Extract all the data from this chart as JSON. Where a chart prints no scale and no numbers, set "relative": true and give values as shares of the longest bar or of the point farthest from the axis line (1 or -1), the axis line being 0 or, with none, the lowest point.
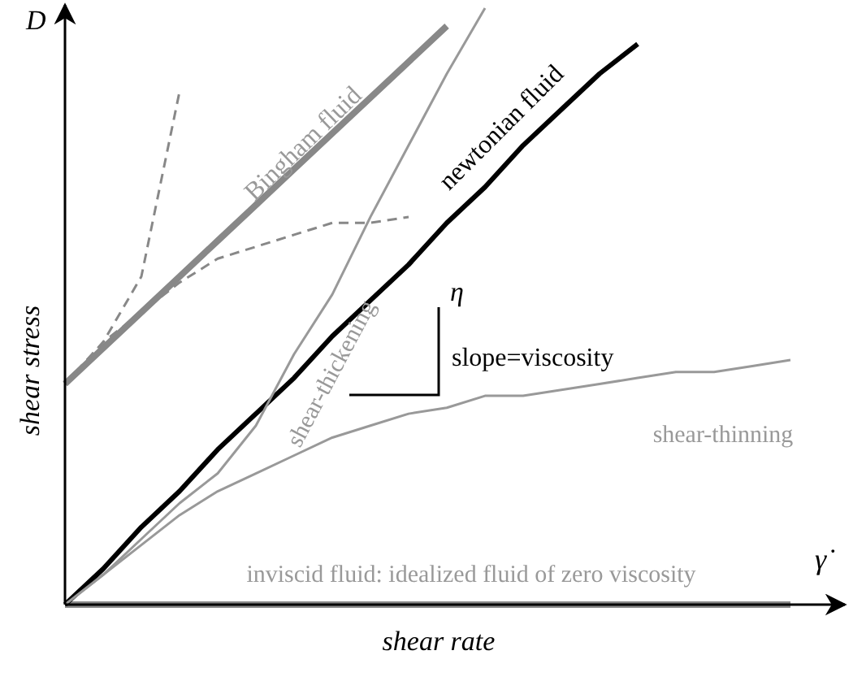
{
  "chart_data": {
    "type": "line",
    "relative": true,
    "xlabel": "shear rate",
    "ylabel": "shear stress",
    "legend": false,
    "annotations": [
      "η",
      "slope=viscosity",
      "D",
      "γ̇"
    ],
    "categories": [
      null,
      null,
      null,
      null,
      null,
      null,
      null,
      null,
      null,
      null,
      null,
      null,
      null,
      null,
      null,
      null,
      null,
      null,
      null,
      null
    ],
    "series": [
      {
        "name": "inviscid fluid: idealized fluid of zero viscosity",
        "color": "#888888",
        "values": [
          0,
          0,
          0,
          0,
          0,
          0,
          0,
          0,
          0,
          0,
          0,
          0,
          0,
          0,
          0,
          0,
          0,
          0,
          0,
          0
        ]
      },
      {
        "name": "shear-thinning",
        "color": "#999999",
        "values": [
          0,
          0.05,
          0.1,
          0.15,
          0.19,
          0.22,
          0.25,
          0.28,
          0.3,
          0.32,
          0.33,
          0.35,
          0.35,
          0.36,
          0.37,
          0.38,
          0.39,
          0.39,
          0.4,
          0.41
        ]
      },
      {
        "name": "newtonian fluid",
        "color": "#000000",
        "values": [
          0,
          0.06,
          0.13,
          0.19,
          0.26,
          0.32,
          0.38,
          0.45,
          0.51,
          0.57,
          0.64,
          0.7,
          0.77,
          0.83,
          0.89,
          0.94,
          null,
          null,
          null,
          null
        ]
      },
      {
        "name": "shear-thickening",
        "color": "#999999",
        "values": [
          0,
          0.05,
          0.11,
          0.17,
          0.22,
          0.3,
          0.42,
          0.52,
          0.65,
          0.77,
          0.89,
          1,
          null,
          null,
          null,
          null,
          null,
          null,
          null,
          null
        ]
      },
      {
        "name": "Bingham fluid",
        "color": "#888888",
        "values": [
          0.37,
          0.43,
          0.49,
          0.55,
          0.61,
          0.67,
          0.73,
          0.79,
          0.85,
          0.91,
          0.97,
          null,
          null,
          null,
          null,
          null,
          null,
          null,
          null,
          null
        ]
      },
      {
        "color": "#888888",
        "line_style": "dashed",
        "values": [
          0.37,
          0.44,
          0.55,
          0.86,
          null,
          null,
          null,
          null,
          null,
          null,
          null,
          null,
          null,
          null,
          null,
          null,
          null,
          null,
          null,
          null
        ]
      },
      {
        "color": "#888888",
        "line_style": "dashed",
        "values": [
          0.37,
          0.44,
          0.49,
          0.54,
          0.58,
          0.6,
          0.62,
          0.64,
          0.64,
          0.65,
          null,
          null,
          null,
          null,
          null,
          null,
          null,
          null,
          null,
          null
        ]
      }
    ]
  }
}
